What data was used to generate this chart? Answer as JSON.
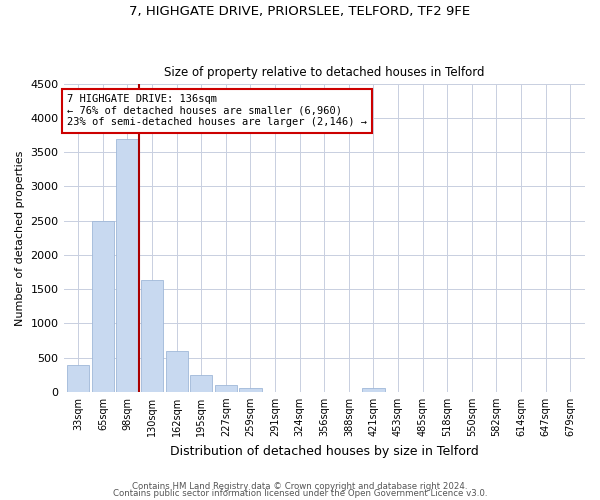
{
  "title1": "7, HIGHGATE DRIVE, PRIORSLEE, TELFORD, TF2 9FE",
  "title2": "Size of property relative to detached houses in Telford",
  "xlabel": "Distribution of detached houses by size in Telford",
  "ylabel": "Number of detached properties",
  "bar_labels": [
    "33sqm",
    "65sqm",
    "98sqm",
    "130sqm",
    "162sqm",
    "195sqm",
    "227sqm",
    "259sqm",
    "291sqm",
    "324sqm",
    "356sqm",
    "388sqm",
    "421sqm",
    "453sqm",
    "485sqm",
    "518sqm",
    "550sqm",
    "582sqm",
    "614sqm",
    "647sqm",
    "679sqm"
  ],
  "bar_values": [
    390,
    2500,
    3700,
    1630,
    600,
    240,
    100,
    55,
    0,
    0,
    0,
    0,
    55,
    0,
    0,
    0,
    0,
    0,
    0,
    0,
    0
  ],
  "bar_color": "#c8d9f0",
  "bar_edge_color": "#a0b8d8",
  "highlight_line_color": "#aa0000",
  "annotation_title": "7 HIGHGATE DRIVE: 136sqm",
  "annotation_line1": "← 76% of detached houses are smaller (6,960)",
  "annotation_line2": "23% of semi-detached houses are larger (2,146) →",
  "annotation_box_color": "#ffffff",
  "annotation_box_edge": "#cc0000",
  "ylim": [
    0,
    4500
  ],
  "yticks": [
    0,
    500,
    1000,
    1500,
    2000,
    2500,
    3000,
    3500,
    4000,
    4500
  ],
  "footer1": "Contains HM Land Registry data © Crown copyright and database right 2024.",
  "footer2": "Contains public sector information licensed under the Open Government Licence v3.0.",
  "bg_color": "#ffffff",
  "grid_color": "#c8cfe0"
}
